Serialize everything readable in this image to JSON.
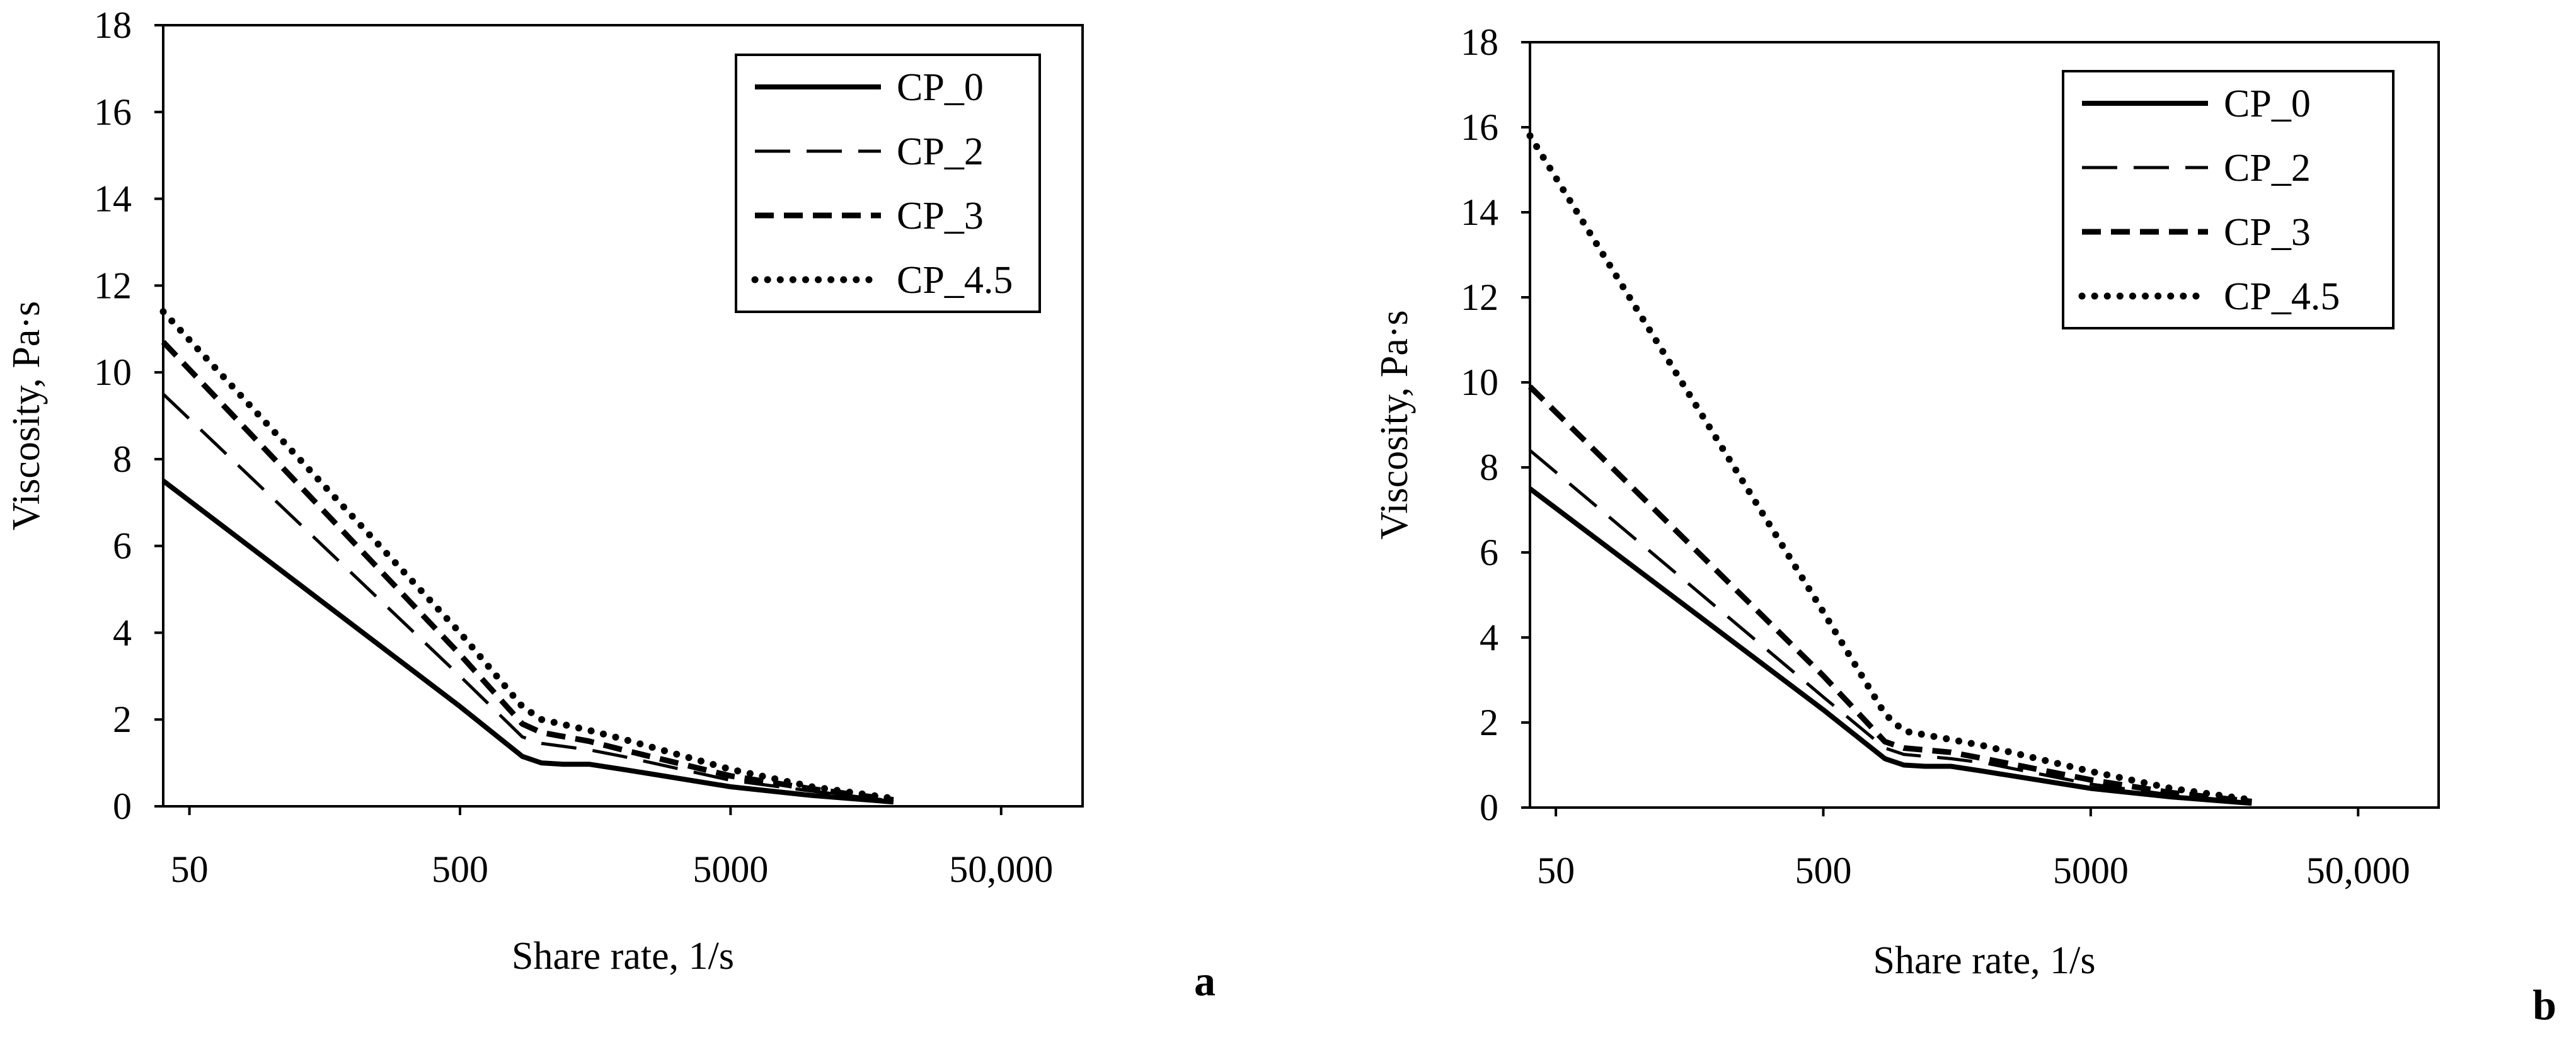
{
  "chart_data": [
    {
      "type": "line",
      "panel_label": "a",
      "xlabel": "Share rate, 1/s",
      "ylabel": "Viscosity, Pa·s",
      "x_scale": "log",
      "xlim": [
        40,
        100000
      ],
      "ylim": [
        0,
        18
      ],
      "x_ticks": [
        50,
        500,
        5000,
        50000
      ],
      "x_tick_labels": [
        "50",
        "500",
        "5000",
        "50,000"
      ],
      "y_ticks": [
        0,
        2,
        4,
        6,
        8,
        10,
        12,
        14,
        16,
        18
      ],
      "y_tick_labels": [
        "0",
        "2",
        "4",
        "6",
        "8",
        "10",
        "12",
        "14",
        "16",
        "18"
      ],
      "grid": false,
      "legend_position": "top-right",
      "series": [
        {
          "name": "CP_0",
          "style": "solid",
          "x": [
            40,
            500,
            850,
            1000,
            1200,
            1500,
            2000,
            5000,
            10000,
            20000
          ],
          "y": [
            7.5,
            2.3,
            1.15,
            1.0,
            0.97,
            0.97,
            0.85,
            0.45,
            0.25,
            0.1
          ]
        },
        {
          "name": "CP_2",
          "style": "long-dash",
          "x": [
            40,
            500,
            850,
            1000,
            1500,
            2000,
            5000,
            10000,
            20000
          ],
          "y": [
            9.5,
            3.0,
            1.6,
            1.45,
            1.3,
            1.15,
            0.6,
            0.35,
            0.12
          ]
        },
        {
          "name": "CP_3",
          "style": "dash",
          "x": [
            40,
            500,
            850,
            1000,
            1500,
            2000,
            5000,
            10000,
            20000
          ],
          "y": [
            10.7,
            3.5,
            1.9,
            1.7,
            1.5,
            1.3,
            0.7,
            0.4,
            0.15
          ]
        },
        {
          "name": "CP_4.5",
          "style": "dotted",
          "x": [
            40,
            500,
            850,
            1000,
            1500,
            2000,
            5000,
            10000,
            20000
          ],
          "y": [
            11.4,
            4.0,
            2.3,
            2.0,
            1.75,
            1.55,
            0.85,
            0.45,
            0.18
          ]
        }
      ]
    },
    {
      "type": "line",
      "panel_label": "b",
      "xlabel": "Share rate, 1/s",
      "ylabel": "Viscosity, Pa·s",
      "x_scale": "log",
      "xlim": [
        40,
        100000
      ],
      "ylim": [
        0,
        18
      ],
      "x_ticks": [
        50,
        500,
        5000,
        50000
      ],
      "x_tick_labels": [
        "50",
        "500",
        "5000",
        "50,000"
      ],
      "y_ticks": [
        0,
        2,
        4,
        6,
        8,
        10,
        12,
        14,
        16,
        18
      ],
      "y_tick_labels": [
        "0",
        "2",
        "4",
        "6",
        "8",
        "10",
        "12",
        "14",
        "16",
        "18"
      ],
      "grid": false,
      "legend_position": "top-right",
      "series": [
        {
          "name": "CP_0",
          "style": "solid",
          "x": [
            40,
            500,
            850,
            1000,
            1200,
            1500,
            2000,
            5000,
            10000,
            20000
          ],
          "y": [
            7.5,
            2.3,
            1.15,
            1.0,
            0.97,
            0.97,
            0.85,
            0.45,
            0.25,
            0.1
          ]
        },
        {
          "name": "CP_2",
          "style": "long-dash",
          "x": [
            40,
            500,
            850,
            1000,
            1500,
            2000,
            5000,
            10000,
            20000
          ],
          "y": [
            8.4,
            2.6,
            1.4,
            1.25,
            1.15,
            1.05,
            0.55,
            0.3,
            0.12
          ]
        },
        {
          "name": "CP_3",
          "style": "dash",
          "x": [
            40,
            500,
            850,
            1000,
            1500,
            2000,
            5000,
            10000,
            20000
          ],
          "y": [
            9.9,
            3.1,
            1.55,
            1.4,
            1.3,
            1.15,
            0.65,
            0.35,
            0.14
          ]
        },
        {
          "name": "CP_4.5",
          "style": "dotted",
          "x": [
            40,
            500,
            850,
            1000,
            1500,
            2000,
            5000,
            10000,
            20000
          ],
          "y": [
            15.8,
            4.6,
            2.2,
            1.8,
            1.6,
            1.45,
            0.85,
            0.45,
            0.18
          ]
        }
      ]
    }
  ]
}
